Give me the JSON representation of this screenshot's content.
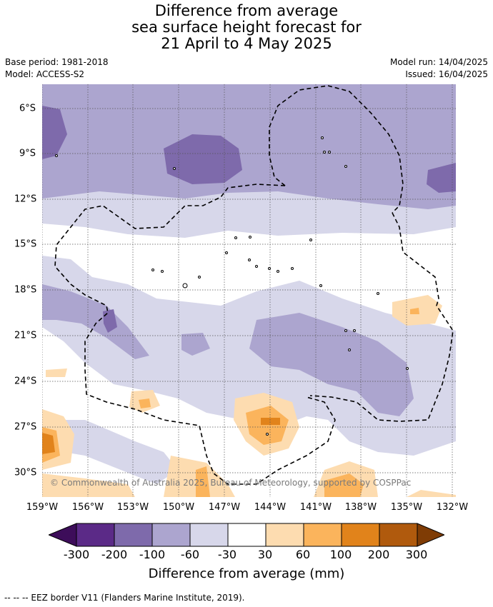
{
  "title": {
    "line1": "Difference from average",
    "line2": "sea surface height forecast for",
    "line3": "21 April to 4 May 2025"
  },
  "meta": {
    "base_period": "Base period: 1981-2018",
    "model": "Model: ACCESS-S2",
    "model_run": "Model run: 14/04/2025",
    "issued": "Issued: 16/04/2025"
  },
  "map": {
    "lon_labels": [
      "159°W",
      "156°W",
      "153°W",
      "150°W",
      "147°W",
      "144°W",
      "141°W",
      "138°W",
      "135°W",
      "132°W"
    ],
    "lat_labels": [
      "6°S",
      "9°S",
      "12°S",
      "15°S",
      "18°S",
      "21°S",
      "24°S",
      "27°S",
      "30°S"
    ],
    "copyright": "© Commonwealth of Australia 2025, Bureau of Meteorology, supported by COSPPac"
  },
  "colorbar": {
    "title": "Difference from average (mm)",
    "tick_labels": [
      "-300",
      "-200",
      "-100",
      "-60",
      "-30",
      "30",
      "60",
      "100",
      "200",
      "300"
    ],
    "colors": [
      "#3d0d5a",
      "#5b2a87",
      "#7e6aab",
      "#aca5cf",
      "#d7d7ea",
      "#ffffff",
      "#fddcb0",
      "#fbb45c",
      "#e1831b",
      "#b05a0d",
      "#7f3c05"
    ]
  },
  "footnote": "--  --  -- EEZ border V11 (Flanders Marine Institute, 2019)."
}
